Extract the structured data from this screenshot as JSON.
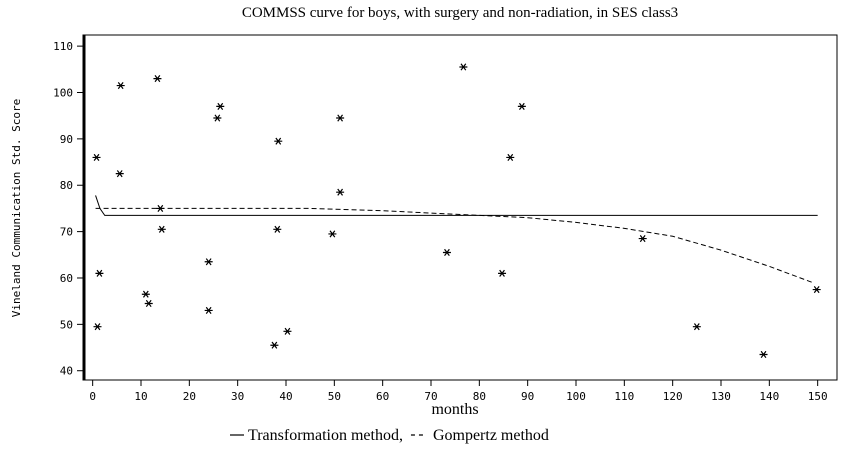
{
  "chart_data": {
    "type": "scatter",
    "title": "COMMSS curve for boys, with surgery and non-radiation, in SES class3",
    "x_label": "months",
    "y_label": "Vineland Communication Std. Score",
    "x": [
      0.8,
      1.0,
      1.4,
      5.8,
      5.6,
      11,
      11.6,
      13.4,
      14,
      14.3,
      24,
      24,
      25.8,
      26.4,
      37.6,
      38.4,
      38.2,
      40.3,
      49.6,
      51.2,
      51.2,
      73.3,
      76.7,
      84.7,
      86.4,
      88.8,
      113.8,
      125,
      138.8,
      149.8
    ],
    "values": [
      86,
      49.5,
      61,
      101.5,
      82.5,
      56.5,
      54.5,
      103,
      75,
      70.5,
      63.5,
      53,
      94.5,
      97,
      45.5,
      89.5,
      70.5,
      48.5,
      69.5,
      94.5,
      78.5,
      65.5,
      105.5,
      61,
      86,
      97,
      68.5,
      49.5,
      43.5,
      57.5
    ],
    "marker_color": "#000000",
    "series": [
      {
        "name": "Transformation method",
        "color": "#000000",
        "dash": "solid",
        "x": [
          0.6,
          1.5,
          2.5,
          150
        ],
        "values": [
          77.8,
          75,
          73.5,
          73.5
        ]
      },
      {
        "name": "Gompertz method",
        "color": "#000000",
        "dash": "dashed",
        "x": [
          0.6,
          2.5,
          45,
          60,
          80,
          90,
          100,
          110,
          120,
          130,
          140,
          149
        ],
        "values": [
          75,
          75,
          75,
          74.5,
          73.5,
          73,
          72,
          70.7,
          69,
          66,
          62.5,
          59
        ]
      }
    ],
    "legend_separator": ",",
    "xlim": [
      -2,
      154
    ],
    "ylim": [
      38,
      112.4
    ],
    "xticks": [
      0,
      10,
      20,
      30,
      40,
      50,
      60,
      70,
      80,
      90,
      100,
      110,
      120,
      130,
      140,
      150
    ],
    "yticks": [
      40,
      50,
      60,
      70,
      80,
      90,
      100,
      110
    ]
  }
}
